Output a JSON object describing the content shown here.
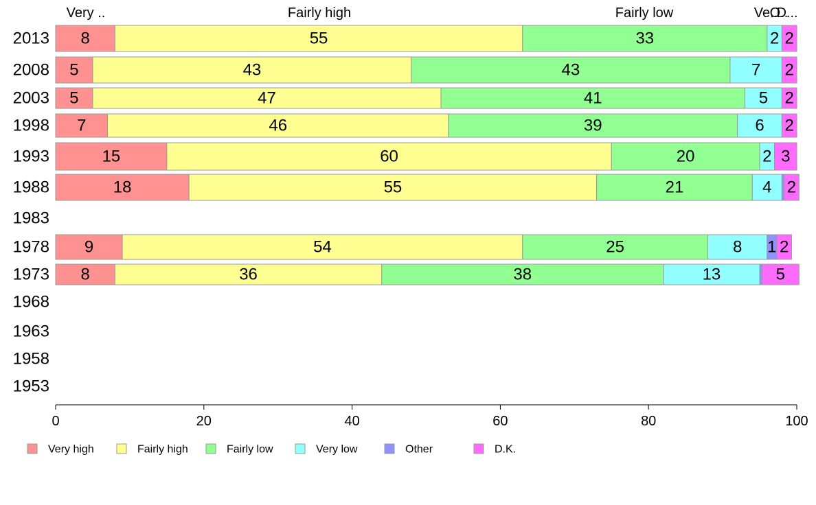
{
  "chart_data": {
    "type": "bar",
    "orientation": "horizontal",
    "stacked": true,
    "categories": [
      "2013",
      "2008",
      "2003",
      "1998",
      "1993",
      "1988",
      "1983",
      "1978",
      "1973",
      "1968",
      "1963",
      "1958",
      "1953"
    ],
    "series": [
      {
        "name": "Very high",
        "color": "#ff9191",
        "values": [
          8,
          5,
          5,
          7,
          15,
          18,
          null,
          9,
          8,
          null,
          null,
          null,
          null
        ]
      },
      {
        "name": "Fairly high",
        "color": "#ffff91",
        "values": [
          55,
          43,
          47,
          46,
          60,
          55,
          null,
          54,
          36,
          null,
          null,
          null,
          null
        ]
      },
      {
        "name": "Fairly low",
        "color": "#91ff91",
        "values": [
          33,
          43,
          41,
          39,
          20,
          21,
          null,
          25,
          38,
          null,
          null,
          null,
          null
        ]
      },
      {
        "name": "Very low",
        "color": "#91ffff",
        "values": [
          2,
          7,
          5,
          6,
          2,
          4,
          null,
          8,
          13,
          null,
          null,
          null,
          null
        ]
      },
      {
        "name": "Other",
        "color": "#9191ff",
        "values": [
          0,
          0,
          0,
          0,
          0,
          0.3,
          null,
          1.3,
          0.3,
          null,
          null,
          null,
          null
        ]
      },
      {
        "name": "D.K.",
        "color": "#ff6bff",
        "values": [
          2,
          2,
          2,
          2,
          3,
          2,
          null,
          2,
          5,
          null,
          null,
          null,
          null
        ]
      }
    ],
    "top_labels": [
      "Very ..",
      "Fairly high",
      "Fairly low",
      "Ve..",
      "O..",
      "D..."
    ],
    "xlim": [
      0,
      100
    ],
    "xticks": [
      "0",
      "20",
      "40",
      "60",
      "80",
      "100"
    ],
    "grid": false,
    "legend_position": "bottom"
  }
}
